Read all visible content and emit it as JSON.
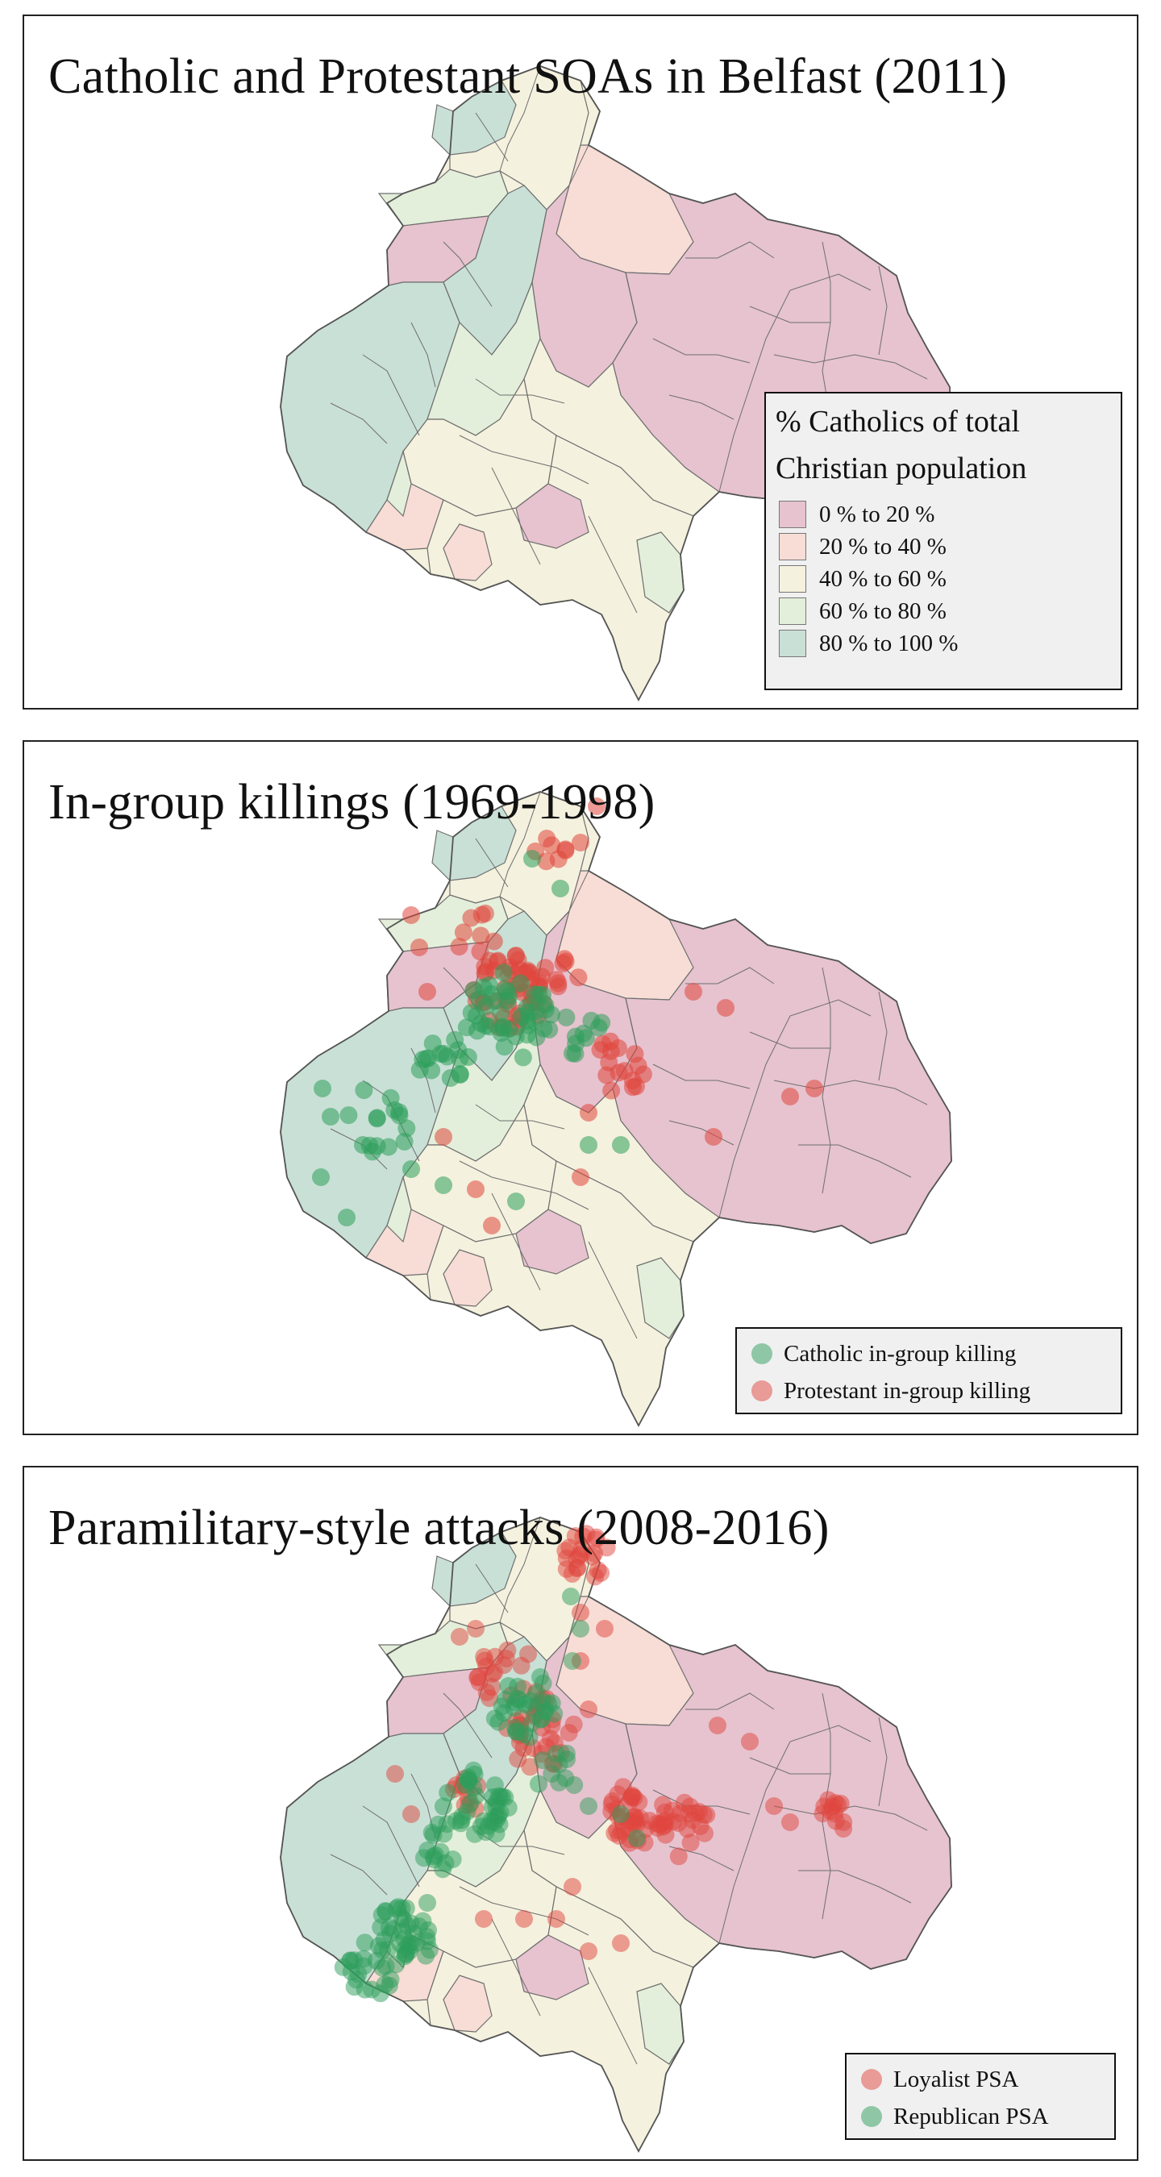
{
  "panels": [
    {
      "title": "Catholic and Protestant SOAs in Belfast (2011)",
      "legend": {
        "title_line1": "% Catholics of total",
        "title_line2": "Christian population",
        "classes": [
          {
            "label": "0 % to 20 %",
            "color": "#e6c3cf"
          },
          {
            "label": "20 % to 40 %",
            "color": "#f7ddd5"
          },
          {
            "label": "40 % to 60 %",
            "color": "#f4f1de"
          },
          {
            "label": "60 % to 80 %",
            "color": "#e3efda"
          },
          {
            "label": "80 % to 100 %",
            "color": "#c9e0d6"
          }
        ]
      }
    },
    {
      "title": "In-group killings (1969-1998)",
      "legend": {
        "items": [
          {
            "label": "Catholic in-group killing",
            "color": "#2e9e5b"
          },
          {
            "label": "Protestant in-group killing",
            "color": "#e0463d"
          }
        ]
      }
    },
    {
      "title": "Paramilitary-style attacks (2008-2016)",
      "legend": {
        "items": [
          {
            "label": "Loyalist PSA",
            "color": "#e0463d"
          },
          {
            "label": "Republican PSA",
            "color": "#2e9e5b"
          }
        ]
      }
    }
  ],
  "colors": {
    "catholic_green": "#2e9e5b",
    "protestant_red": "#e0463d",
    "boundary": "#6f6f6f"
  }
}
